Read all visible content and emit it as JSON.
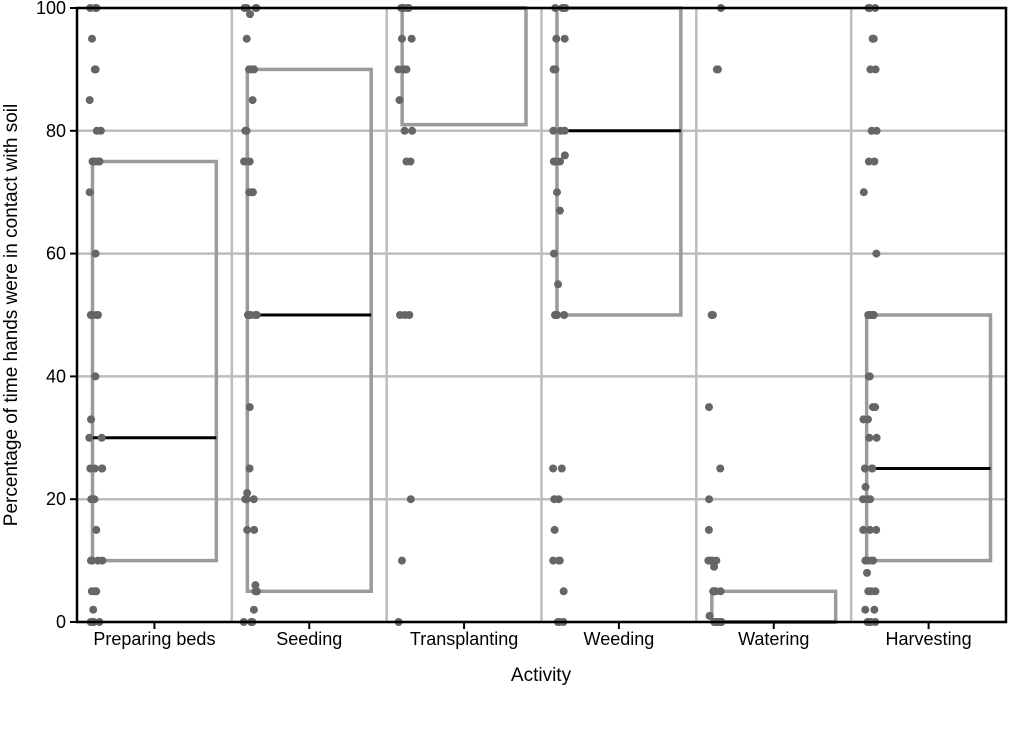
{
  "chart_data": {
    "type": "box_with_points",
    "xlabel": "Activity",
    "ylabel": "Percentage of time hands were in contact with soil",
    "ylim": [
      0,
      100
    ],
    "yticks": [
      0,
      20,
      40,
      60,
      80,
      100
    ],
    "grid": true,
    "colors": {
      "box": "#9b9b9b",
      "median": "#000000",
      "points": "#666666",
      "grid": "#bdbdbd",
      "frame": "#000000"
    },
    "categories": [
      "Preparing beds",
      "Seeding",
      "Transplanting",
      "Weeding",
      "Watering",
      "Harvesting"
    ],
    "boxes": [
      {
        "category": "Preparing beds",
        "q1": 10,
        "median": 30,
        "q3": 75
      },
      {
        "category": "Seeding",
        "q1": 5,
        "median": 50,
        "q3": 90
      },
      {
        "category": "Transplanting",
        "q1": 81,
        "median": 100,
        "q3": 100
      },
      {
        "category": "Weeding",
        "q1": 50,
        "median": 80,
        "q3": 100
      },
      {
        "category": "Watering",
        "q1": 0,
        "median": 0,
        "q3": 5
      },
      {
        "category": "Harvesting",
        "q1": 10,
        "median": 25,
        "q3": 50
      }
    ],
    "points": [
      [
        100,
        100,
        100,
        95,
        90,
        90,
        85,
        80,
        80,
        75,
        75,
        75,
        75,
        70,
        60,
        50,
        50,
        50,
        50,
        40,
        33,
        30,
        30,
        25,
        25,
        25,
        25,
        20,
        20,
        15,
        10,
        10,
        10,
        10,
        5,
        5,
        5,
        2,
        0,
        0,
        0,
        0
      ],
      [
        100,
        100,
        100,
        100,
        99,
        95,
        90,
        90,
        90,
        85,
        80,
        80,
        75,
        75,
        75,
        70,
        70,
        70,
        50,
        50,
        50,
        50,
        50,
        50,
        35,
        25,
        21,
        20,
        20,
        20,
        15,
        15,
        6,
        5,
        5,
        5,
        2,
        0,
        0,
        0
      ],
      [
        100,
        100,
        100,
        100,
        100,
        100,
        95,
        95,
        90,
        90,
        90,
        90,
        85,
        80,
        80,
        75,
        75,
        50,
        50,
        50,
        20,
        10,
        0
      ],
      [
        100,
        100,
        100,
        100,
        100,
        95,
        95,
        90,
        90,
        90,
        80,
        80,
        80,
        76,
        75,
        75,
        75,
        70,
        67,
        60,
        55,
        50,
        50,
        50,
        50,
        50,
        25,
        25,
        20,
        20,
        15,
        10,
        10,
        10,
        5,
        0,
        0,
        0
      ],
      [
        100,
        90,
        90,
        50,
        50,
        35,
        25,
        20,
        15,
        10,
        10,
        10,
        10,
        9,
        5,
        5,
        5,
        5,
        5,
        1,
        0,
        0,
        0,
        0,
        0,
        0,
        0
      ],
      [
        100,
        100,
        100,
        95,
        95,
        90,
        90,
        80,
        80,
        75,
        75,
        70,
        60,
        50,
        50,
        50,
        50,
        50,
        40,
        40,
        35,
        35,
        33,
        33,
        30,
        30,
        25,
        25,
        25,
        25,
        22,
        20,
        20,
        20,
        15,
        15,
        15,
        10,
        10,
        10,
        10,
        10,
        8,
        5,
        5,
        5,
        2,
        2,
        0,
        0,
        0,
        0
      ]
    ]
  }
}
